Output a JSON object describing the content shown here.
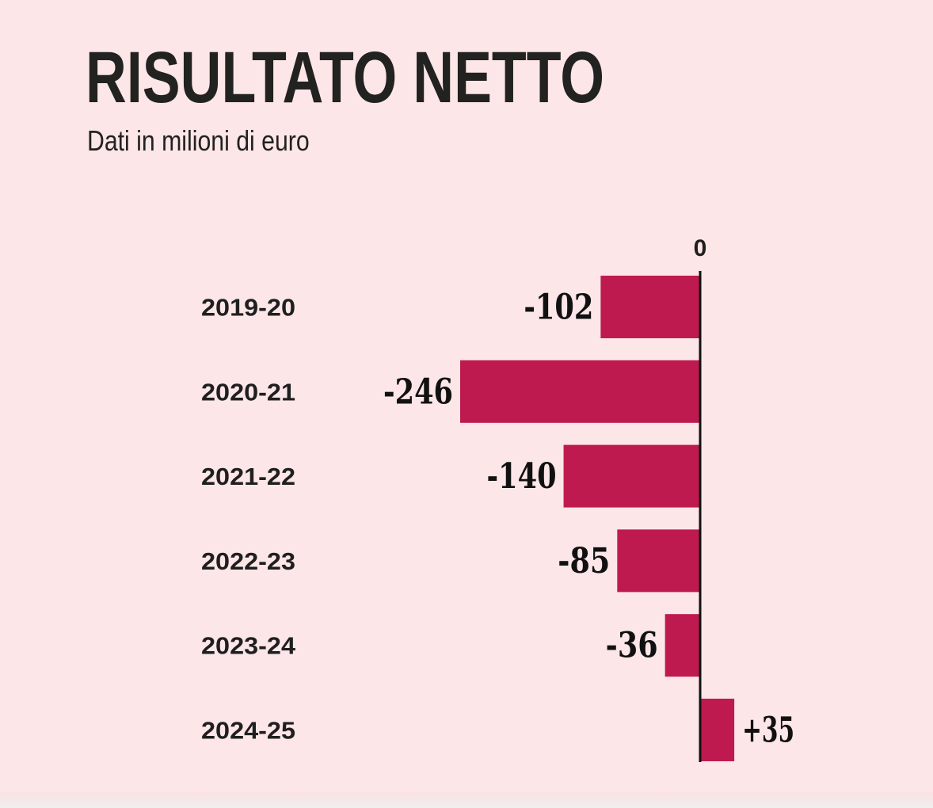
{
  "header": {
    "title": "RISULTATO NETTO",
    "subtitle": "Dati in milioni di euro"
  },
  "colors": {
    "background": "#fce6e8",
    "bar": "#be1a4f",
    "text": "#1f1f1f"
  },
  "chart_data": {
    "type": "bar",
    "orientation": "horizontal",
    "title": "RISULTATO NETTO",
    "subtitle": "Dati in milioni di euro",
    "zero_label": "0",
    "categories": [
      "2019-20",
      "2020-21",
      "2021-22",
      "2022-23",
      "2023-24",
      "2024-25"
    ],
    "values": [
      -102,
      -246,
      -140,
      -85,
      -36,
      35
    ],
    "value_labels": [
      "-102",
      "-246",
      "-140",
      "-85",
      "-36",
      "+35"
    ],
    "grid": false,
    "legend": "none"
  }
}
